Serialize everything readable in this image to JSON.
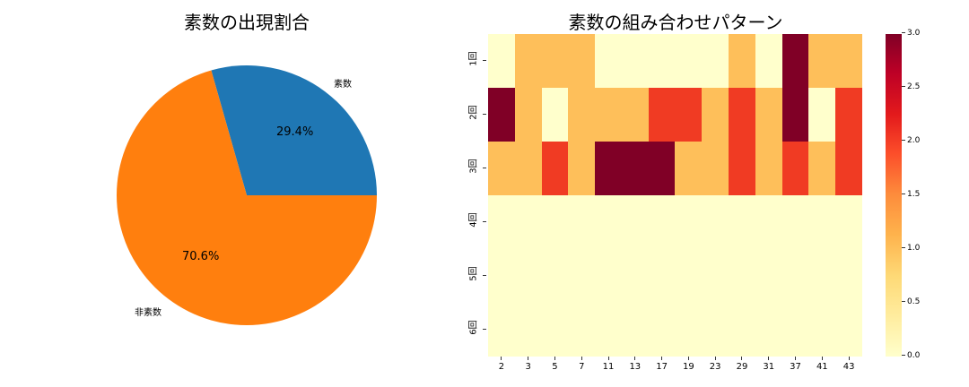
{
  "chart_data": [
    {
      "type": "pie",
      "title": "素数の出現割合",
      "labels": [
        "素数",
        "非素数"
      ],
      "values": [
        29.4,
        70.6
      ],
      "autopct_labels": [
        "29.4%",
        "70.6%"
      ],
      "colors": [
        "#1f77b4",
        "#ff7f0e"
      ],
      "startangle": 0
    },
    {
      "type": "heatmap",
      "title": "素数の組み合わせパターン",
      "xlabel": "",
      "ylabel": "",
      "x_categories": [
        "2",
        "3",
        "5",
        "7",
        "11",
        "13",
        "17",
        "19",
        "23",
        "29",
        "31",
        "37",
        "41",
        "43"
      ],
      "y_categories": [
        "1回",
        "2回",
        "3回",
        "4回",
        "5回",
        "6回"
      ],
      "values": [
        [
          0,
          1,
          1,
          1,
          0,
          0,
          0,
          0,
          0,
          1,
          0,
          3,
          1,
          1
        ],
        [
          3,
          1,
          0,
          1,
          1,
          1,
          2,
          2,
          1,
          2,
          1,
          3,
          0,
          2
        ],
        [
          1,
          1,
          2,
          1,
          3,
          3,
          3,
          1,
          1,
          2,
          1,
          2,
          1,
          2
        ],
        [
          0,
          0,
          0,
          0,
          0,
          0,
          0,
          0,
          0,
          0,
          0,
          0,
          0,
          0
        ],
        [
          0,
          0,
          0,
          0,
          0,
          0,
          0,
          0,
          0,
          0,
          0,
          0,
          0,
          0
        ],
        [
          0,
          0,
          0,
          0,
          0,
          0,
          0,
          0,
          0,
          0,
          0,
          0,
          0,
          0
        ]
      ],
      "colormap": "YlOrRd",
      "colorbar": {
        "min": 0.0,
        "max": 3.0,
        "ticks": [
          "0.0",
          "0.5",
          "1.0",
          "1.5",
          "2.0",
          "2.5",
          "3.0"
        ]
      },
      "color_levels": {
        "0": "#ffffcc",
        "1": "#febf5a",
        "2": "#f03b23",
        "3": "#800026"
      }
    }
  ]
}
